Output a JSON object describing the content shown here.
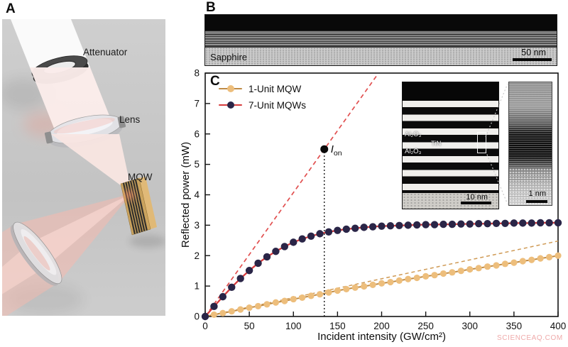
{
  "figure": {
    "panel_a": {
      "label": "A",
      "attenuator_label": "Attenuator",
      "lens_label": "Lens",
      "mqw_label": "MQW"
    },
    "panel_b": {
      "label": "B",
      "substrate_label": "Sapphire",
      "scale_bar_label": "50 nm"
    },
    "panel_c": {
      "label": "C"
    },
    "inset": {
      "layer_label_top": "Al₂O₃",
      "layer_label_mid": "TiN",
      "layer_label_bottom": "Al₂O₃",
      "left_scale_bar_label": "10 nm",
      "right_scale_bar_label": "1 nm"
    },
    "watermark": "SCIENCEAQ.COM"
  },
  "chart_data": {
    "type": "line",
    "title": "",
    "xlabel": "Incident intensity (GW/cm²)",
    "ylabel": "Reflected power (mW)",
    "xlim": [
      0,
      400
    ],
    "ylim": [
      0,
      8
    ],
    "xticks": [
      0,
      50,
      100,
      150,
      200,
      250,
      300,
      350,
      400
    ],
    "yticks": [
      0,
      1,
      2,
      3,
      4,
      5,
      6,
      7,
      8
    ],
    "grid": false,
    "legend_position": "upper-left",
    "x": [
      0,
      10,
      20,
      30,
      40,
      50,
      60,
      70,
      80,
      90,
      100,
      110,
      120,
      130,
      140,
      150,
      160,
      170,
      180,
      190,
      200,
      210,
      220,
      230,
      240,
      250,
      260,
      270,
      280,
      290,
      300,
      310,
      320,
      330,
      340,
      350,
      360,
      370,
      380,
      390,
      400
    ],
    "series": [
      {
        "name": "1-Unit MQW",
        "line_color": "#bf8b46",
        "marker_color": "#edbe7c",
        "marker_radius": 4.6,
        "line_width": 2,
        "values": [
          0,
          0.06,
          0.11,
          0.17,
          0.23,
          0.29,
          0.34,
          0.4,
          0.46,
          0.51,
          0.57,
          0.62,
          0.68,
          0.73,
          0.79,
          0.85,
          0.9,
          0.95,
          0.99,
          1.04,
          1.09,
          1.13,
          1.18,
          1.23,
          1.27,
          1.32,
          1.36,
          1.41,
          1.45,
          1.5,
          1.55,
          1.59,
          1.64,
          1.68,
          1.73,
          1.77,
          1.82,
          1.86,
          1.91,
          1.95,
          2.0
        ]
      },
      {
        "name": "7-Unit MQWs",
        "line_color": "#d63a3c",
        "marker_color": "#2a2547",
        "marker_radius": 5.2,
        "line_width": 2.3,
        "values": [
          0,
          0.33,
          0.65,
          0.96,
          1.25,
          1.51,
          1.75,
          1.96,
          2.14,
          2.3,
          2.44,
          2.55,
          2.64,
          2.72,
          2.78,
          2.83,
          2.87,
          2.9,
          2.93,
          2.95,
          2.97,
          2.98,
          2.99,
          3.0,
          3.01,
          3.02,
          3.02,
          3.03,
          3.03,
          3.04,
          3.04,
          3.05,
          3.05,
          3.06,
          3.06,
          3.07,
          3.07,
          3.07,
          3.08,
          3.08,
          3.08
        ]
      }
    ],
    "guides": {
      "ion_label_main": "I",
      "ion_label_sub": "on",
      "ion_x": 135,
      "ion_y": 5.5,
      "red_dashed_end": [
        196,
        7.98
      ],
      "red_dashed_color": "#e14f4f",
      "tan_dashed_end": [
        400,
        2.48
      ],
      "tan_dashed_color": "#cf9a55",
      "threshold_line_color": "#1a1a1a"
    }
  }
}
